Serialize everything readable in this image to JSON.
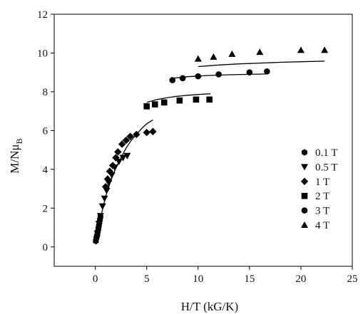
{
  "chart_data": {
    "type": "scatter",
    "xlabel": "H/T (kG/K)",
    "ylabel": "M/Nμ",
    "ylabel_sub": "B",
    "xlim": [
      -4,
      25
    ],
    "ylim": [
      -1,
      12
    ],
    "xticks": [
      0,
      5,
      10,
      15,
      20,
      25
    ],
    "yticks": [
      0,
      2,
      4,
      6,
      8,
      10,
      12
    ],
    "grid": false,
    "legend_position": "right",
    "series": [
      {
        "name": "0.1 T",
        "marker": "hexagon",
        "points": [
          [
            0.05,
            0.3
          ],
          [
            0.1,
            0.45
          ],
          [
            0.15,
            0.55
          ],
          [
            0.2,
            0.65
          ],
          [
            0.25,
            0.8
          ],
          [
            0.3,
            0.95
          ],
          [
            0.35,
            1.1
          ],
          [
            0.4,
            1.25
          ],
          [
            0.45,
            1.4
          ],
          [
            0.5,
            1.55
          ]
        ]
      },
      {
        "name": "0.5 T",
        "marker": "triangle-down",
        "points": [
          [
            0.2,
            0.7
          ],
          [
            0.35,
            1.2
          ],
          [
            0.5,
            1.6
          ],
          [
            0.7,
            2.1
          ],
          [
            0.9,
            2.5
          ],
          [
            1.1,
            2.9
          ],
          [
            1.3,
            3.3
          ],
          [
            1.6,
            3.7
          ],
          [
            1.9,
            4.1
          ],
          [
            2.3,
            4.4
          ],
          [
            2.7,
            4.6
          ],
          [
            3.1,
            4.7
          ]
        ]
      },
      {
        "name": "1 T",
        "marker": "diamond",
        "points": [
          [
            1.0,
            3.1
          ],
          [
            1.2,
            3.5
          ],
          [
            1.4,
            3.9
          ],
          [
            1.7,
            4.2
          ],
          [
            2.0,
            4.6
          ],
          [
            2.2,
            4.9
          ],
          [
            2.6,
            5.3
          ],
          [
            3.0,
            5.5
          ],
          [
            3.4,
            5.7
          ],
          [
            4.0,
            5.8
          ],
          [
            5.0,
            5.9
          ],
          [
            5.6,
            5.95
          ]
        ]
      },
      {
        "name": "2 T",
        "marker": "square",
        "points": [
          [
            5.0,
            7.25
          ],
          [
            5.8,
            7.35
          ],
          [
            6.7,
            7.45
          ],
          [
            8.2,
            7.55
          ],
          [
            9.8,
            7.6
          ],
          [
            11.1,
            7.6
          ]
        ]
      },
      {
        "name": "3 T",
        "marker": "circle",
        "points": [
          [
            7.5,
            8.6
          ],
          [
            8.5,
            8.7
          ],
          [
            10.0,
            8.8
          ],
          [
            12.0,
            8.9
          ],
          [
            15.0,
            9.0
          ],
          [
            16.7,
            9.05
          ]
        ]
      },
      {
        "name": "4 T",
        "marker": "triangle-up",
        "points": [
          [
            10.0,
            9.7
          ],
          [
            11.5,
            9.8
          ],
          [
            13.3,
            9.95
          ],
          [
            16.0,
            10.05
          ],
          [
            20.0,
            10.15
          ],
          [
            22.3,
            10.15
          ]
        ]
      }
    ],
    "fit_curves": [
      {
        "points": [
          [
            0.0,
            0.3
          ],
          [
            0.3,
            1.0
          ],
          [
            0.6,
            1.7
          ],
          [
            1.0,
            2.6
          ],
          [
            1.5,
            3.4
          ],
          [
            2.0,
            4.1
          ],
          [
            2.5,
            4.6
          ],
          [
            3.0,
            5.1
          ],
          [
            3.5,
            5.5
          ],
          [
            4.0,
            5.8
          ],
          [
            4.5,
            6.1
          ],
          [
            5.0,
            6.35
          ],
          [
            5.6,
            6.55
          ]
        ]
      },
      {
        "points": [
          [
            5.0,
            7.45
          ],
          [
            6.0,
            7.6
          ],
          [
            7.0,
            7.7
          ],
          [
            8.0,
            7.77
          ],
          [
            9.0,
            7.82
          ],
          [
            10.0,
            7.86
          ],
          [
            11.2,
            7.9
          ]
        ]
      },
      {
        "points": [
          [
            7.5,
            8.7
          ],
          [
            9.0,
            8.78
          ],
          [
            11.0,
            8.84
          ],
          [
            13.0,
            8.88
          ],
          [
            15.0,
            8.9
          ],
          [
            16.7,
            8.92
          ]
        ]
      },
      {
        "points": [
          [
            10.0,
            9.3
          ],
          [
            12.0,
            9.38
          ],
          [
            14.0,
            9.44
          ],
          [
            16.0,
            9.48
          ],
          [
            18.0,
            9.52
          ],
          [
            20.0,
            9.55
          ],
          [
            22.3,
            9.58
          ]
        ]
      }
    ]
  }
}
